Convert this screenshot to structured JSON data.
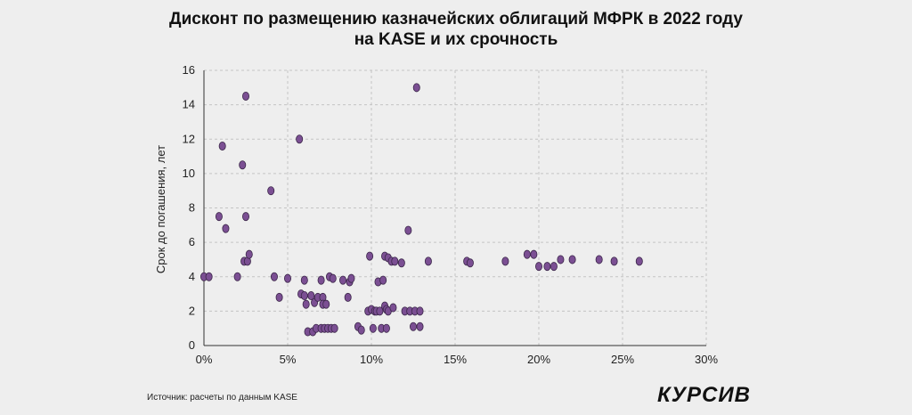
{
  "title_line1": "Дисконт по размещению казначейских облигаций МФРК в 2022 году",
  "title_line2": "на KASE и их срочность",
  "source": "Источник: расчеты по данным KASE",
  "logo": "КУРСИВ",
  "chart_data": {
    "type": "scatter",
    "title": "Дисконт по размещению казначейских облигаций МФРК в 2022 году на KASE и их срочность",
    "xlabel": "",
    "ylabel": "Срок до погашения, лет",
    "xlim": [
      0,
      30
    ],
    "ylim": [
      0,
      16
    ],
    "x_ticks": [
      0,
      5,
      10,
      15,
      20,
      25,
      30
    ],
    "x_tick_labels": [
      "0%",
      "5%",
      "10%",
      "15%",
      "20%",
      "25%",
      "30%"
    ],
    "y_ticks": [
      0,
      2,
      4,
      6,
      8,
      10,
      12,
      14,
      16
    ],
    "y_tick_labels": [
      "0",
      "2",
      "4",
      "6",
      "8",
      "10",
      "12",
      "14",
      "16"
    ],
    "grid": true,
    "marker_color": "#7b4f93",
    "marker_stroke": "#3a2648",
    "points": [
      [
        0.0,
        4.0
      ],
      [
        0.3,
        4.0
      ],
      [
        0.9,
        7.5
      ],
      [
        1.1,
        11.6
      ],
      [
        1.3,
        6.8
      ],
      [
        2.0,
        4.0
      ],
      [
        2.3,
        10.5
      ],
      [
        2.4,
        4.9
      ],
      [
        2.5,
        14.5
      ],
      [
        2.5,
        7.5
      ],
      [
        2.6,
        4.9
      ],
      [
        2.7,
        5.3
      ],
      [
        4.0,
        9.0
      ],
      [
        4.2,
        4.0
      ],
      [
        4.5,
        2.8
      ],
      [
        5.0,
        3.9
      ],
      [
        5.7,
        12.0
      ],
      [
        5.8,
        3.0
      ],
      [
        6.0,
        2.9
      ],
      [
        6.0,
        3.8
      ],
      [
        6.1,
        2.4
      ],
      [
        6.2,
        0.8
      ],
      [
        6.4,
        2.9
      ],
      [
        6.5,
        0.8
      ],
      [
        6.6,
        2.5
      ],
      [
        6.7,
        1.0
      ],
      [
        6.8,
        2.8
      ],
      [
        7.0,
        3.8
      ],
      [
        7.0,
        1.0
      ],
      [
        7.1,
        2.8
      ],
      [
        7.1,
        2.4
      ],
      [
        7.2,
        1.0
      ],
      [
        7.3,
        2.4
      ],
      [
        7.4,
        1.0
      ],
      [
        7.5,
        4.0
      ],
      [
        7.6,
        1.0
      ],
      [
        7.7,
        3.9
      ],
      [
        7.8,
        1.0
      ],
      [
        8.3,
        3.8
      ],
      [
        8.6,
        2.8
      ],
      [
        8.7,
        3.7
      ],
      [
        8.8,
        3.9
      ],
      [
        9.2,
        1.1
      ],
      [
        9.4,
        0.9
      ],
      [
        9.8,
        2.0
      ],
      [
        9.9,
        5.2
      ],
      [
        10.0,
        2.1
      ],
      [
        10.1,
        1.0
      ],
      [
        10.2,
        2.0
      ],
      [
        10.3,
        2.0
      ],
      [
        10.4,
        3.7
      ],
      [
        10.5,
        2.0
      ],
      [
        10.6,
        1.0
      ],
      [
        10.7,
        3.8
      ],
      [
        10.8,
        2.3
      ],
      [
        10.8,
        5.2
      ],
      [
        10.9,
        2.1
      ],
      [
        10.9,
        1.0
      ],
      [
        11.0,
        5.1
      ],
      [
        11.0,
        2.0
      ],
      [
        11.2,
        4.9
      ],
      [
        11.3,
        2.2
      ],
      [
        11.4,
        4.9
      ],
      [
        11.8,
        4.8
      ],
      [
        12.0,
        2.0
      ],
      [
        12.2,
        6.7
      ],
      [
        12.3,
        2.0
      ],
      [
        12.5,
        1.1
      ],
      [
        12.6,
        2.0
      ],
      [
        12.7,
        15.0
      ],
      [
        12.9,
        1.1
      ],
      [
        12.9,
        2.0
      ],
      [
        13.4,
        4.9
      ],
      [
        15.7,
        4.9
      ],
      [
        15.9,
        4.8
      ],
      [
        18.0,
        4.9
      ],
      [
        19.3,
        5.3
      ],
      [
        19.7,
        5.3
      ],
      [
        20.0,
        4.6
      ],
      [
        20.5,
        4.6
      ],
      [
        20.9,
        4.6
      ],
      [
        21.3,
        5.0
      ],
      [
        22.0,
        5.0
      ],
      [
        23.6,
        5.0
      ],
      [
        24.5,
        4.9
      ],
      [
        26.0,
        4.9
      ]
    ]
  }
}
